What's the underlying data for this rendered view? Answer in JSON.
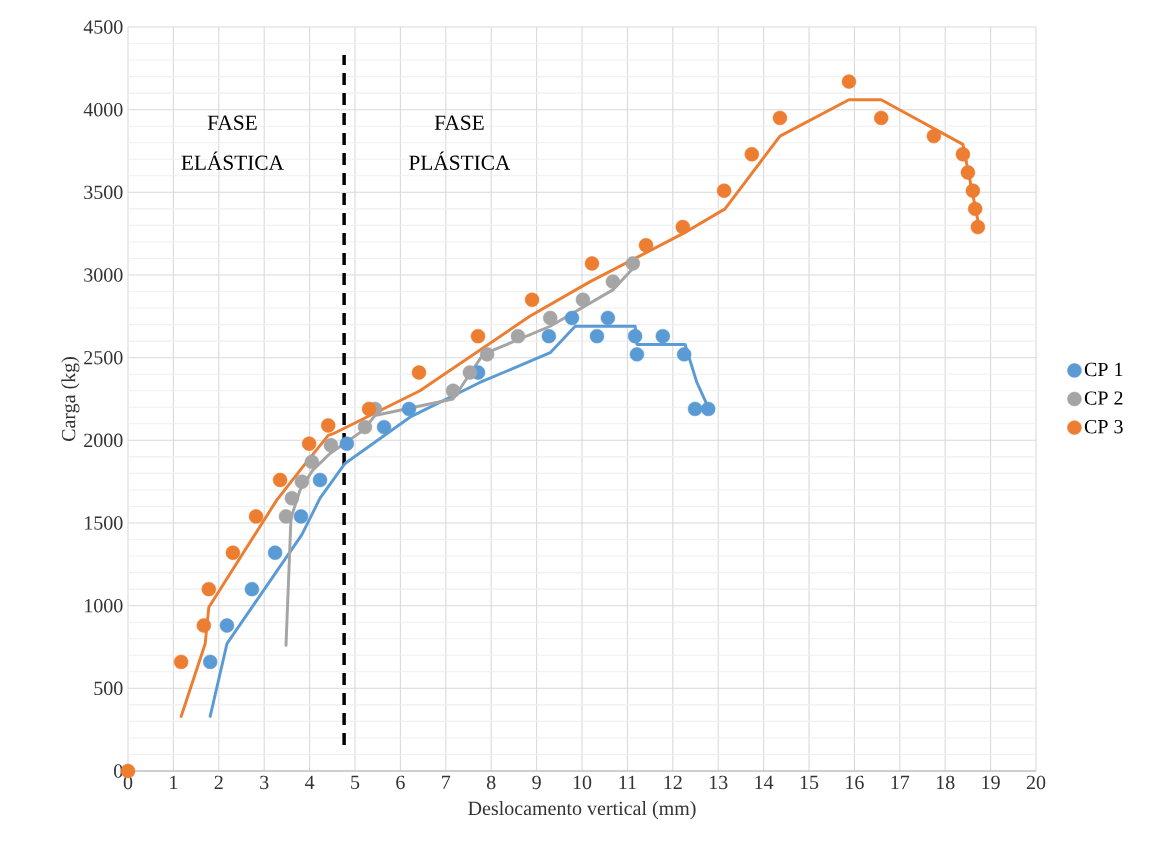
{
  "chart_data": {
    "type": "scatter",
    "xlabel": "Deslocamento vertical (mm)",
    "ylabel": "Carga (kg)",
    "xlim": [
      0,
      20
    ],
    "ylim": [
      0,
      4500
    ],
    "xticks": [
      0,
      1,
      2,
      3,
      4,
      5,
      6,
      7,
      8,
      9,
      10,
      11,
      12,
      13,
      14,
      15,
      16,
      17,
      18,
      19,
      20
    ],
    "yticks": [
      0,
      500,
      1000,
      1500,
      2000,
      2500,
      3000,
      3500,
      4000,
      4500
    ],
    "grid": true,
    "legend": "right",
    "annotations": [
      "FASE ELÁSTICA",
      "FASE PLÁSTICA"
    ],
    "ref_lines": [
      {
        "axis": "x",
        "value": 4.76,
        "color": "#000000",
        "line_style": "dashed"
      }
    ],
    "series": [
      {
        "name": "CP 1",
        "marker": "circle",
        "color": "#5b9bd5",
        "x": [
          1.81,
          2.18,
          2.73,
          3.24,
          3.81,
          4.23,
          4.82,
          5.64,
          6.19,
          7.71,
          9.27,
          9.78,
          10.33,
          10.57,
          11.17,
          11.21,
          11.78,
          12.25,
          12.49,
          12.78
        ],
        "values": [
          660,
          880,
          1100,
          1320,
          1540,
          1760,
          1980,
          2080,
          2190,
          2410,
          2630,
          2740,
          2630,
          2740,
          2630,
          2520,
          2630,
          2520,
          2190,
          2190
        ]
      },
      {
        "name": "CP 2",
        "marker": "circle",
        "color": "#a5a5a5",
        "x": [
          3.48,
          3.61,
          3.83,
          4.05,
          4.47,
          5.22,
          5.44,
          7.16,
          7.53,
          7.91,
          8.59,
          9.3,
          10.02,
          10.68,
          11.12
        ],
        "values": [
          1540,
          1650,
          1750,
          1870,
          1970,
          2080,
          2190,
          2300,
          2410,
          2520,
          2630,
          2740,
          2850,
          2960,
          3070
        ]
      },
      {
        "name": "CP 3",
        "marker": "circle",
        "color": "#ed7d31",
        "x": [
          0,
          1.17,
          1.67,
          1.78,
          2.31,
          2.82,
          3.35,
          3.99,
          4.41,
          5.31,
          6.41,
          7.71,
          8.9,
          10.22,
          11.41,
          12.22,
          13.13,
          13.74,
          14.36,
          15.88,
          16.59,
          17.75,
          18.39,
          18.5,
          18.61,
          18.66,
          18.72
        ],
        "values": [
          0,
          660,
          880,
          1100,
          1320,
          1540,
          1760,
          1980,
          2090,
          2190,
          2410,
          2630,
          2850,
          3070,
          3180,
          3290,
          3510,
          3730,
          3950,
          4170,
          3950,
          3840,
          3730,
          3620,
          3510,
          3400,
          3290
        ]
      },
      {
        "type": "line",
        "marker": "none",
        "color": "#5b9bd5",
        "x": [
          1.81,
          2.18,
          3.83,
          4.23,
          4.78,
          6.21,
          7.75,
          9.3,
          9.85,
          11.17,
          11.21,
          12.27,
          12.53,
          12.78
        ],
        "values": [
          330,
          770,
          1430,
          1650,
          1860,
          2140,
          2350,
          2530,
          2690,
          2690,
          2580,
          2580,
          2350,
          2200
        ]
      },
      {
        "type": "line",
        "marker": "none",
        "color": "#a5a5a5",
        "x": [
          3.48,
          3.59,
          3.79,
          4.07,
          4.45,
          5.18,
          5.44,
          7.16,
          7.82,
          9.3,
          10.68,
          11.12
        ],
        "values": [
          760,
          1530,
          1700,
          1820,
          1920,
          2060,
          2150,
          2250,
          2520,
          2690,
          2910,
          3040
        ]
      },
      {
        "type": "line",
        "marker": "none",
        "color": "#ed7d31",
        "x": [
          1.17,
          1.7,
          1.78,
          3.28,
          3.85,
          4.41,
          4.52,
          6.43,
          8.85,
          10.18,
          12.22,
          13.15,
          14.36,
          15.88,
          16.59,
          18.39,
          18.72
        ],
        "values": [
          330,
          770,
          990,
          1640,
          1840,
          2030,
          2040,
          2300,
          2750,
          2960,
          3250,
          3400,
          3840,
          4060,
          4060,
          3790,
          3330
        ]
      }
    ]
  }
}
